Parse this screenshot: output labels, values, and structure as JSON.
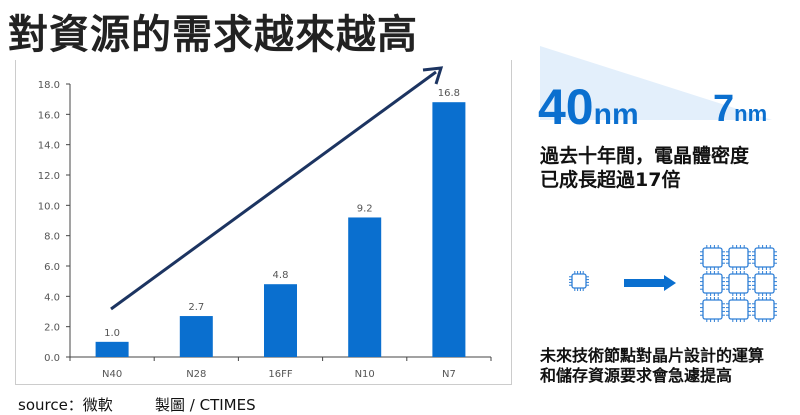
{
  "title": "對資源的需求越來越高",
  "source": "source：微軟",
  "credit": "製圖 / CTIMES",
  "right": {
    "node_from": "40",
    "node_to": "7",
    "unit": "nm",
    "density_text_1": "過去十年間，電晶體密度",
    "density_text_2": "已成長超過17倍",
    "demand_text_1": "未來技術節點對晶片設計的運算",
    "demand_text_2": "和儲存資源要求會急遽提高"
  },
  "colors": {
    "bar": "#0a6fcf",
    "arrow": "#1c3461",
    "triangle": "#e3effb"
  },
  "chart_data": {
    "type": "bar",
    "categories": [
      "N40",
      "N28",
      "16FF",
      "N10",
      "N7"
    ],
    "values": [
      1.0,
      2.7,
      4.8,
      9.2,
      16.8
    ],
    "data_labels": [
      "1.0",
      "2.7",
      "4.8",
      "9.2",
      "16.8"
    ],
    "ylim": [
      0,
      18
    ],
    "yticks": [
      "0.0",
      "2.0",
      "4.0",
      "6.0",
      "8.0",
      "10.0",
      "12.0",
      "14.0",
      "16.0",
      "18.0"
    ],
    "grid": false,
    "trend_arrow": true
  }
}
